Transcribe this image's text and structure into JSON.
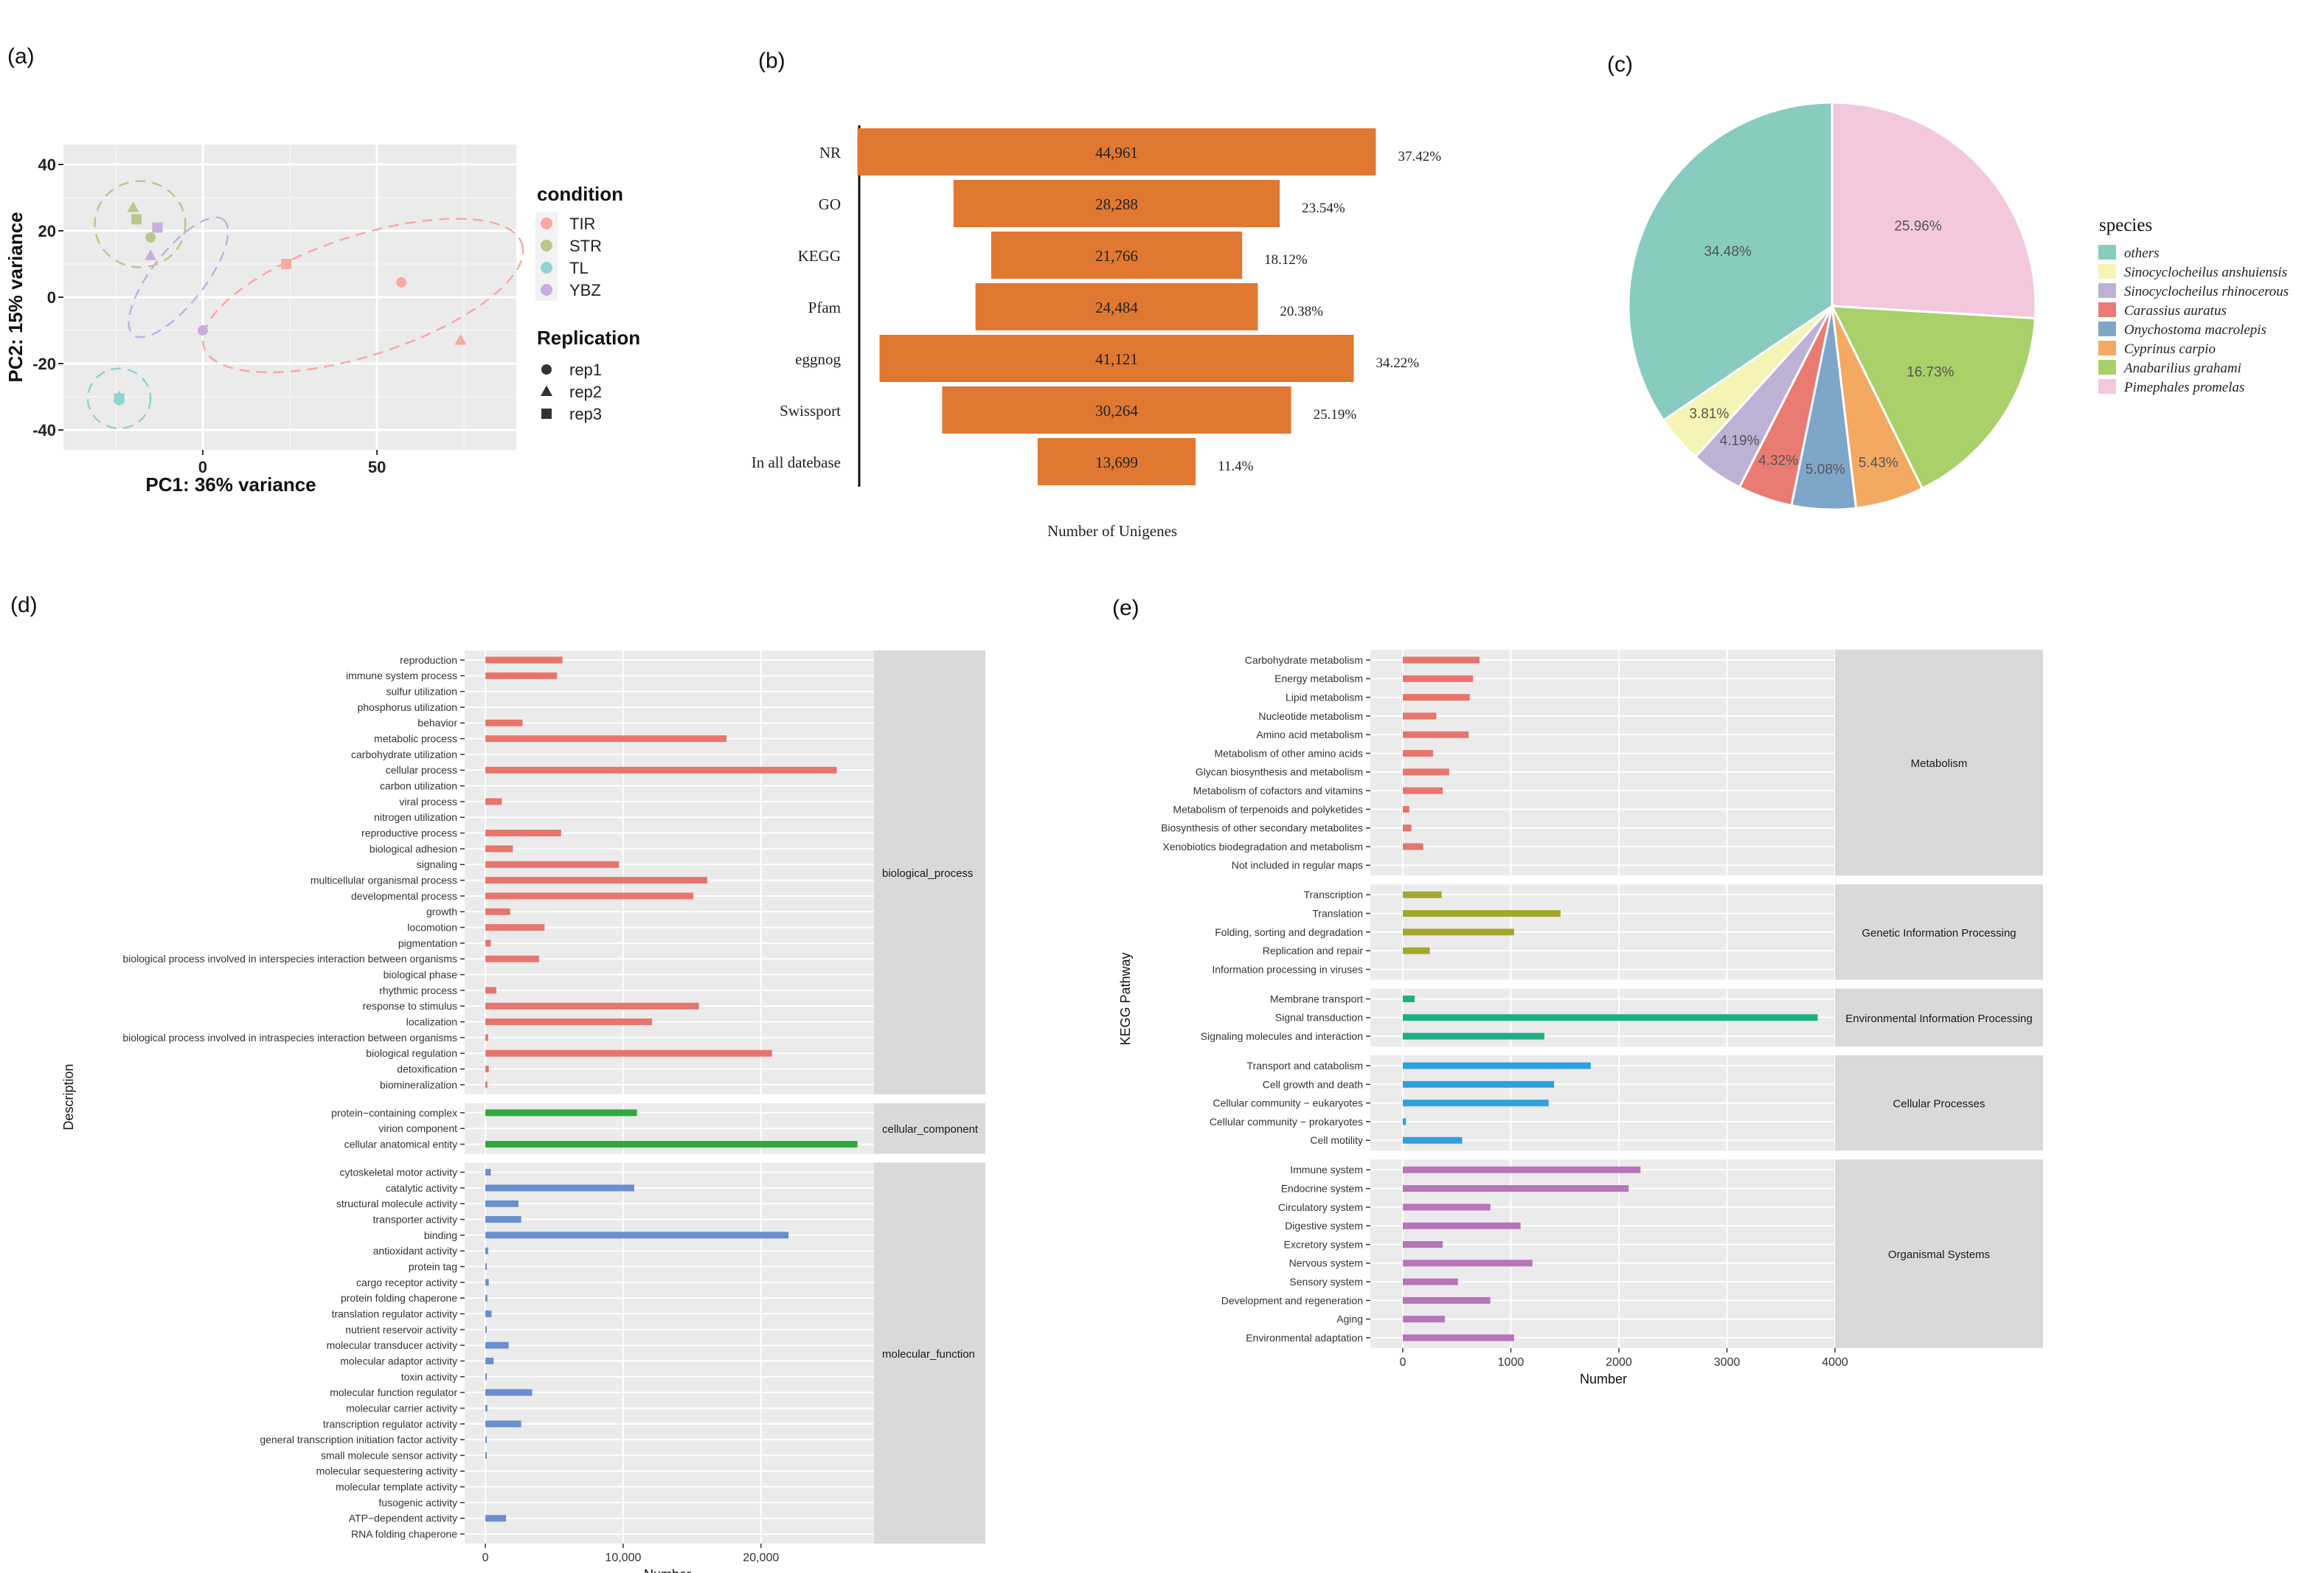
{
  "chart_data": [
    {
      "panel": "(a)",
      "type": "scatter",
      "title": "",
      "xlabel": "PC1: 36% variance",
      "ylabel": "PC2: 15% variance",
      "xlim": [
        -40,
        90
      ],
      "ylim": [
        -46,
        46
      ],
      "xticks": [
        0,
        50
      ],
      "yticks": [
        40,
        20,
        0,
        -20,
        -40
      ],
      "legend_condition_title": "condition",
      "legend_replication_title": "Replication",
      "conditions": [
        {
          "name": "TIR",
          "color": "#f8a9a1"
        },
        {
          "name": "STR",
          "color": "#b9c98a"
        },
        {
          "name": "TL",
          "color": "#8fd3d3"
        },
        {
          "name": "YBZ",
          "color": "#c7afe0"
        }
      ],
      "replications": [
        {
          "name": "rep1",
          "shape": "circle"
        },
        {
          "name": "rep2",
          "shape": "triangle"
        },
        {
          "name": "rep3",
          "shape": "square"
        }
      ],
      "points": [
        {
          "x": 57,
          "y": 4.5,
          "condition": "TIR",
          "rep": "rep1"
        },
        {
          "x": 74,
          "y": -13,
          "condition": "TIR",
          "rep": "rep2"
        },
        {
          "x": 24,
          "y": 10,
          "condition": "TIR",
          "rep": "rep3"
        },
        {
          "x": -15,
          "y": 18,
          "condition": "STR",
          "rep": "rep1"
        },
        {
          "x": -20,
          "y": 27,
          "condition": "STR",
          "rep": "rep2"
        },
        {
          "x": -19,
          "y": 23.5,
          "condition": "STR",
          "rep": "rep3"
        },
        {
          "x": -24,
          "y": -31,
          "condition": "TL",
          "rep": "rep1"
        },
        {
          "x": -24,
          "y": -30,
          "condition": "TL",
          "rep": "rep2"
        },
        {
          "x": -24,
          "y": -30.5,
          "condition": "TL",
          "rep": "rep3"
        },
        {
          "x": 0,
          "y": -10,
          "condition": "YBZ",
          "rep": "rep1"
        },
        {
          "x": -15,
          "y": 12.5,
          "condition": "YBZ",
          "rep": "rep2"
        },
        {
          "x": -13,
          "y": 21,
          "condition": "YBZ",
          "rep": "rep3"
        }
      ],
      "ellipses": [
        {
          "condition": "TIR",
          "cx": 46,
          "cy": 0.5,
          "rx": 48,
          "ry": 18,
          "angle": -18
        },
        {
          "condition": "STR",
          "cx": -18,
          "cy": 22,
          "rx": 13,
          "ry": 13,
          "angle": 0
        },
        {
          "condition": "TL",
          "cx": -24,
          "cy": -30.5,
          "rx": 9,
          "ry": 9,
          "angle": 0
        },
        {
          "condition": "YBZ",
          "cx": -7,
          "cy": 6,
          "rx": 21,
          "ry": 8,
          "angle": -52
        }
      ]
    },
    {
      "panel": "(b)",
      "type": "bar",
      "xlabel": "Number of Unigenes",
      "color": "#e07831",
      "categories": [
        "NR",
        "GO",
        "KEGG",
        "Pfam",
        "eggnog",
        "Swissport",
        "In all datebase"
      ],
      "values": [
        44961,
        28288,
        21766,
        24484,
        41121,
        30264,
        13699
      ],
      "value_labels": [
        "44,961",
        "28,288",
        "21,766",
        "24,484",
        "41,121",
        "30,264",
        "13,699"
      ],
      "percent_labels": [
        "37.42%",
        "23.54%",
        "18.12%",
        "20.38%",
        "34.22%",
        "25.19%",
        "11.4%"
      ]
    },
    {
      "panel": "(c)",
      "type": "pie",
      "legend_title": "species",
      "slices": [
        {
          "name": "Pimephales promelas",
          "value": 25.96,
          "label": "25.96%",
          "color": "#f3c8dd"
        },
        {
          "name": "Anabarilius grahami",
          "value": 16.73,
          "label": "16.73%",
          "color": "#a9d069"
        },
        {
          "name": "Cyprinus carpio",
          "value": 5.43,
          "label": "5.43%",
          "color": "#f3a962"
        },
        {
          "name": "Onychostoma macrolepis",
          "value": 5.08,
          "label": "5.08%",
          "color": "#7ea6c9"
        },
        {
          "name": "Carassius auratus",
          "value": 4.32,
          "label": "4.32%",
          "color": "#ea7b72"
        },
        {
          "name": "Sinocyclocheilus rhinocerous",
          "value": 4.19,
          "label": "4.19%",
          "color": "#bdb2d5"
        },
        {
          "name": "Sinocyclocheilus anshuiensis",
          "value": 3.81,
          "label": "3.81%",
          "color": "#f5f4b4"
        },
        {
          "name": "others",
          "value": 34.48,
          "label": "34.48%",
          "color": "#88ccbf"
        }
      ],
      "legend_order": [
        "others",
        "Sinocyclocheilus anshuiensis",
        "Sinocyclocheilus rhinocerous",
        "Carassius auratus",
        "Onychostoma macrolepis",
        "Cyprinus carpio",
        "Anabarilius grahami",
        "Pimephales promelas"
      ]
    },
    {
      "panel": "(d)",
      "type": "bar",
      "orientation": "horizontal",
      "xlabel": "Number",
      "ylabel": "Description",
      "xlim": [
        -1500,
        28200
      ],
      "xticks": [
        0,
        10000,
        20000
      ],
      "xtick_labels": [
        "0",
        "10,000",
        "20,000"
      ],
      "groups": [
        {
          "name": "biological_process",
          "color": "#e8756d",
          "categories": [
            "reproduction",
            "immune system process",
            "sulfur utilization",
            "phosphorus utilization",
            "behavior",
            "metabolic process",
            "carbohydrate utilization",
            "cellular process",
            "carbon utilization",
            "viral process",
            "nitrogen utilization",
            "reproductive process",
            "biological adhesion",
            "signaling",
            "multicellular organismal process",
            "developmental process",
            "growth",
            "locomotion",
            "pigmentation",
            "biological process involved in interspecies interaction between organisms",
            "biological phase",
            "rhythmic process",
            "response to stimulus",
            "localization",
            "biological process involved in intraspecies interaction between organisms",
            "biological regulation",
            "detoxification",
            "biomineralization"
          ],
          "values": [
            5600,
            5200,
            0,
            0,
            2700,
            17500,
            0,
            25500,
            0,
            1200,
            0,
            5500,
            2000,
            9700,
            16100,
            15100,
            1800,
            4300,
            400,
            3900,
            0,
            800,
            15500,
            12100,
            200,
            20800,
            250,
            150
          ]
        },
        {
          "name": "cellular_component",
          "color": "#2fa93f",
          "categories": [
            "protein−containing complex",
            "virion component",
            "cellular anatomical entity"
          ],
          "values": [
            11000,
            0,
            27000
          ]
        },
        {
          "name": "molecular_function",
          "color": "#6a8fcf",
          "categories": [
            "cytoskeletal motor activity",
            "catalytic activity",
            "structural molecule activity",
            "transporter activity",
            "binding",
            "antioxidant activity",
            "protein tag",
            "cargo receptor activity",
            "protein folding chaperone",
            "translation regulator activity",
            "nutrient reservoir activity",
            "molecular transducer activity",
            "molecular adaptor activity",
            "toxin activity",
            "molecular function regulator",
            "molecular carrier activity",
            "transcription regulator activity",
            "general transcription initiation factor activity",
            "small molecule sensor activity",
            "molecular sequestering activity",
            "molecular template activity",
            "fusogenic activity",
            "ATP−dependent activity",
            "RNA folding chaperone"
          ],
          "values": [
            400,
            10800,
            2400,
            2600,
            22000,
            200,
            100,
            250,
            150,
            450,
            20,
            1700,
            600,
            10,
            3400,
            150,
            2600,
            50,
            80,
            0,
            0,
            0,
            1500,
            0
          ]
        }
      ]
    },
    {
      "panel": "(e)",
      "type": "bar",
      "orientation": "horizontal",
      "xlabel": "Number",
      "ylabel": "KEGG Pathway",
      "xlim": [
        -300,
        4000
      ],
      "xticks": [
        0,
        1000,
        2000,
        3000,
        4000
      ],
      "xtick_labels": [
        "0",
        "1000",
        "2000",
        "3000",
        "4000"
      ],
      "groups": [
        {
          "name": "Metabolism",
          "color": "#e8756d",
          "categories": [
            "Carbohydrate metabolism",
            "Energy metabolism",
            "Lipid metabolism",
            "Nucleotide metabolism",
            "Amino acid metabolism",
            "Metabolism of other amino acids",
            "Glycan biosynthesis and metabolism",
            "Metabolism of cofactors and vitamins",
            "Metabolism of terpenoids and polyketides",
            "Biosynthesis of other secondary metabolites",
            "Xenobiotics biodegradation and metabolism",
            "Not included in regular maps"
          ],
          "values": [
            710,
            650,
            620,
            310,
            610,
            280,
            430,
            370,
            60,
            80,
            190,
            0
          ]
        },
        {
          "name": "Genetic Information Processing",
          "color": "#a3a72c",
          "categories": [
            "Transcription",
            "Translation",
            "Folding, sorting and degradation",
            "Replication and repair",
            "Information processing in viruses"
          ],
          "values": [
            360,
            1460,
            1030,
            250,
            0
          ]
        },
        {
          "name": "Environmental Information Processing",
          "color": "#1fae84",
          "categories": [
            "Membrane transport",
            "Signal transduction",
            "Signaling molecules and interaction"
          ],
          "values": [
            110,
            3840,
            1310
          ]
        },
        {
          "name": "Cellular Processes",
          "color": "#2ea1dc",
          "categories": [
            "Transport and catabolism",
            "Cell growth and death",
            "Cellular community − eukaryotes",
            "Cellular community − prokaryotes",
            "Cell motility"
          ],
          "values": [
            1740,
            1400,
            1350,
            30,
            550
          ]
        },
        {
          "name": "Organismal Systems",
          "color": "#b774b9",
          "categories": [
            "Immune system",
            "Endocrine system",
            "Circulatory system",
            "Digestive system",
            "Excretory system",
            "Nervous system",
            "Sensory system",
            "Development and regeneration",
            "Aging",
            "Environmental adaptation"
          ],
          "values": [
            2200,
            2090,
            810,
            1090,
            370,
            1200,
            510,
            810,
            390,
            1030
          ]
        }
      ]
    }
  ]
}
